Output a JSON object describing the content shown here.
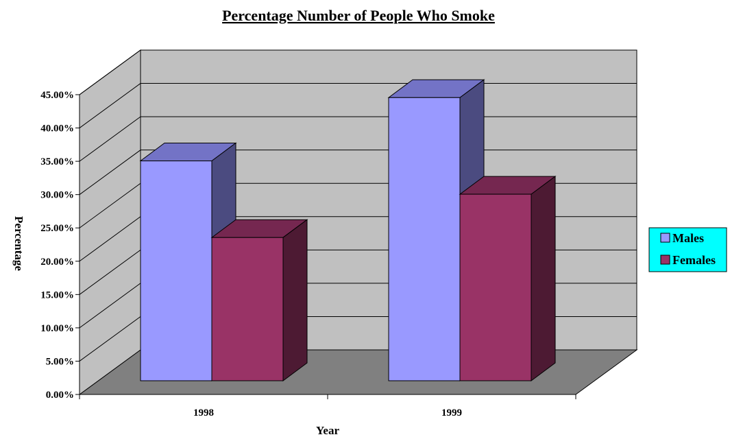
{
  "chart_data": {
    "type": "bar",
    "title": "Percentage Number of People Who Smoke",
    "xlabel": "Year",
    "ylabel": "Percentage",
    "categories": [
      "1998",
      "1999"
    ],
    "series": [
      {
        "name": "Males",
        "values": [
          0.33,
          0.425
        ],
        "color": "#9999ff",
        "top_color": "#7373c6",
        "side_color": "#4b4b80"
      },
      {
        "name": "Females",
        "values": [
          0.215,
          0.28
        ],
        "color": "#993366",
        "top_color": "#752750",
        "side_color": "#4d1a33"
      }
    ],
    "ylim": [
      0,
      0.45
    ],
    "yticks": [
      "0.00%",
      "5.00%",
      "10.00%",
      "15.00%",
      "20.00%",
      "25.00%",
      "30.00%",
      "35.00%",
      "40.00%",
      "45.00%"
    ],
    "grid": true,
    "legend_position": "right",
    "colors": {
      "wall": "#c0c0c0",
      "floor": "#808080",
      "legend_bg": "#00ffff"
    }
  }
}
